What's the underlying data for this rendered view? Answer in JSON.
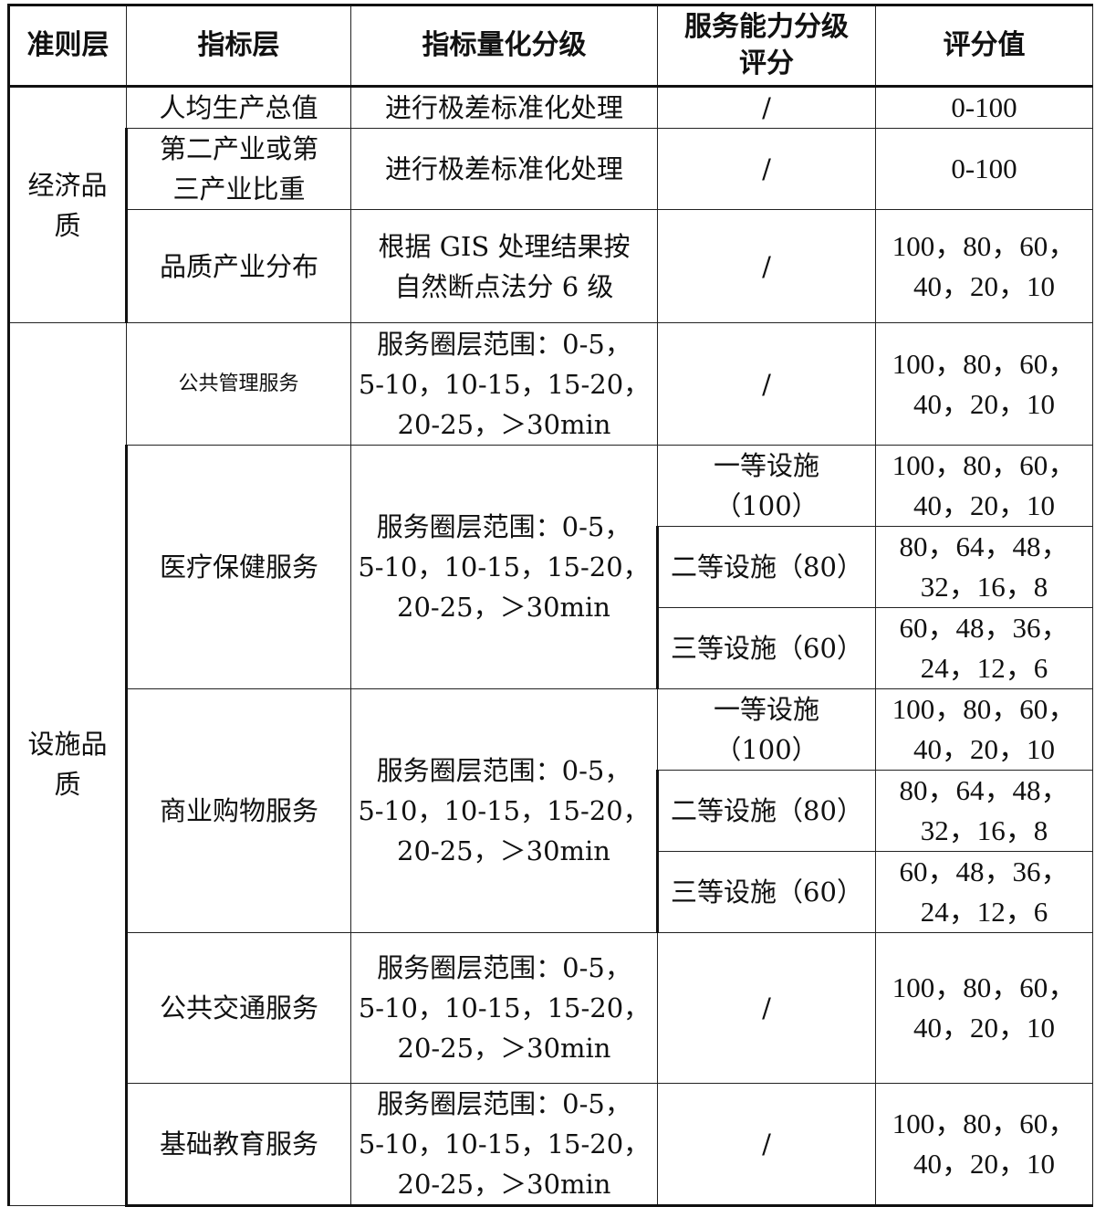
{
  "header": [
    "准则层",
    "指标层",
    "指标量化分级",
    "服务能力分级\n评分",
    "评分值"
  ],
  "economic": {
    "criterion": "经济品\n质",
    "rows": [
      {
        "indicator": "人均生产总值",
        "grading": "进行极差标准化处理",
        "capability": "/",
        "score": "0-100"
      },
      {
        "indicator": "第二产业或第\n三产业比重",
        "grading": "进行极差标准化处理",
        "capability": "/",
        "score": "0-100"
      },
      {
        "indicator": "品质产业分布",
        "grading": "根据 GIS 处理结果按\n自然断点法分 6 级",
        "capability": "/",
        "score": "100，80，60，\n40，20，10"
      }
    ]
  },
  "facility": {
    "criterion": "设施品\n质",
    "public_mgmt": {
      "indicator": "公共管理服务",
      "grading": "服务圈层范围：0-5，\n5-10，10-15，15-20，\n20-25，＞30min",
      "capability": "/",
      "score": "100，80，60，\n40，20，10"
    },
    "medical": {
      "indicator": "医疗保健服务",
      "grading": "服务圈层范围：0-5，\n5-10，10-15，15-20，\n20-25，＞30min",
      "levels": [
        {
          "capability": "一等设施\n（100）",
          "score": "100，80，60，\n40，20，10"
        },
        {
          "capability": "二等设施（80）",
          "score": "80，64，48，\n32，16，8"
        },
        {
          "capability": "三等设施（60）",
          "score": "60，48，36，\n24，12，6"
        }
      ]
    },
    "commerce": {
      "indicator": "商业购物服务",
      "grading": "服务圈层范围：0-5，\n5-10，10-15，15-20，\n20-25，＞30min",
      "levels": [
        {
          "capability": "一等设施\n（100）",
          "score": "100，80，60，\n40，20，10"
        },
        {
          "capability": "二等设施（80）",
          "score": "80，64，48，\n32，16，8"
        },
        {
          "capability": "三等设施（60）",
          "score": "60，48，36，\n24，12，6"
        }
      ]
    },
    "transit": {
      "indicator": "公共交通服务",
      "grading": "服务圈层范围：0-5，\n5-10，10-15，15-20，\n20-25，＞30min",
      "capability": "/",
      "score": "100，80，60，\n40，20，10"
    },
    "education": {
      "indicator": "基础教育服务",
      "grading": "服务圈层范围：0-5，\n5-10，10-15，15-20，\n20-25，＞30min",
      "capability": "/",
      "score": "100，80，60，\n40，20，10"
    }
  }
}
